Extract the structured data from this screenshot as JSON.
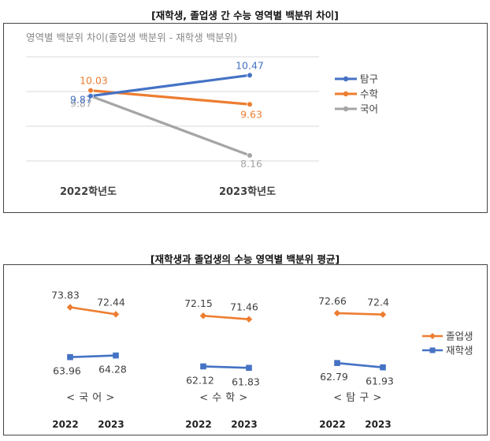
{
  "chart_data": [
    {
      "type": "line",
      "heading": "[재학생, 졸업생 간 수능 영역별 백분위 차이]",
      "title": "영역별 백분위 차이(졸업생 백분위 - 재학생 백분위)",
      "categories": [
        "2022학년도",
        "2023학년도"
      ],
      "ylim": [
        7,
        11
      ],
      "grid": true,
      "legend": "right",
      "series": [
        {
          "name": "탐구",
          "color": "#4472C4",
          "values": [
            9.87,
            10.47
          ],
          "labels": [
            "9.87",
            "10.47"
          ]
        },
        {
          "name": "수학",
          "color": "#ED7D31",
          "values": [
            10.03,
            9.63
          ],
          "labels": [
            "10.03",
            "9.63"
          ]
        },
        {
          "name": "국어",
          "color": "#A5A5A5",
          "values": [
            9.87,
            8.16
          ],
          "labels": [
            "9.87",
            "8.16"
          ]
        }
      ]
    },
    {
      "type": "line",
      "heading": "[재학생과 졸업생의 수능 영역별 백분위 평균]",
      "groups": [
        "< 국 어 >",
        "< 수 학 >",
        "< 탐 구 >"
      ],
      "years": [
        "2022",
        "2023"
      ],
      "ylim": [
        55,
        80
      ],
      "legend": "right",
      "series": [
        {
          "name": "졸업생",
          "color": "#ED7D31",
          "values": [
            [
              73.83,
              72.44
            ],
            [
              72.15,
              71.46
            ],
            [
              72.66,
              72.4
            ]
          ],
          "labels": [
            [
              "73.83",
              "72.44"
            ],
            [
              "72.15",
              "71.46"
            ],
            [
              "72.66",
              "72.4"
            ]
          ]
        },
        {
          "name": "재학생",
          "color": "#4472C4",
          "values": [
            [
              63.96,
              64.28
            ],
            [
              62.12,
              61.83
            ],
            [
              62.79,
              61.93
            ]
          ],
          "labels": [
            [
              "63.96",
              "64.28"
            ],
            [
              "62.12",
              "61.83"
            ],
            [
              "62.79",
              "61.93"
            ]
          ]
        }
      ]
    }
  ]
}
